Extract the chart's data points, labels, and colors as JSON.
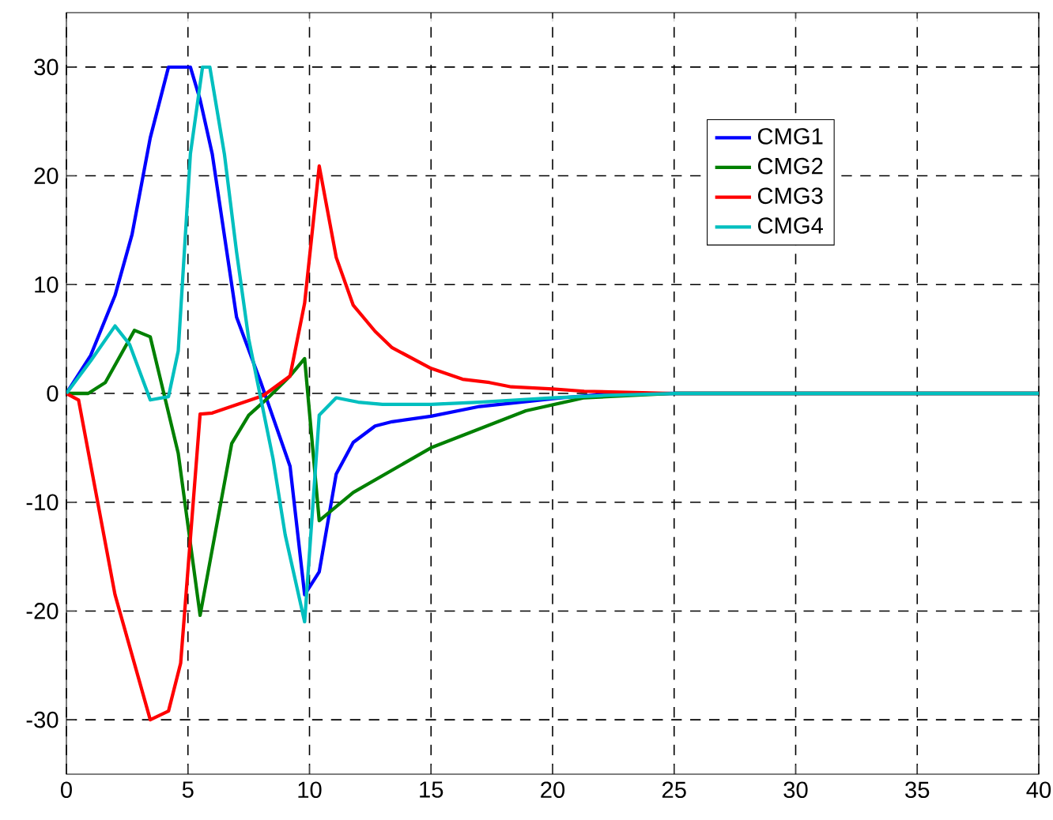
{
  "chart_data": {
    "type": "line",
    "xlim": [
      0,
      40
    ],
    "ylim": [
      -35,
      35
    ],
    "xticks": [
      0,
      5,
      10,
      15,
      20,
      25,
      30,
      35,
      40
    ],
    "yticks": [
      -30,
      -20,
      -10,
      0,
      10,
      20,
      30
    ],
    "grid": true,
    "legend": "top right",
    "line_style": "solid",
    "series": [
      {
        "name": "CMG1",
        "color": "#0000ff",
        "x": [
          0,
          1,
          2,
          2.7,
          3.45,
          4.2,
          5.1,
          5.5,
          6,
          7,
          8,
          9.2,
          9.8,
          10.4,
          11.1,
          11.8,
          12.7,
          13.4,
          15,
          17,
          20.4,
          22,
          25,
          40
        ],
        "values": [
          0,
          3.5,
          9,
          14.6,
          23.5,
          30,
          30,
          27,
          22,
          7,
          1,
          -6.7,
          -18.5,
          -16.4,
          -7.4,
          -4.5,
          -3,
          -2.6,
          -2.1,
          -1.2,
          -0.4,
          -0.1,
          0,
          0
        ]
      },
      {
        "name": "CMG2",
        "color": "#008000",
        "x": [
          0,
          0.9,
          1.6,
          2.8,
          3.45,
          4.6,
          5.5,
          6.8,
          7.5,
          8.3,
          9.2,
          9.8,
          10.4,
          11.8,
          15,
          18.9,
          21.3,
          25,
          40
        ],
        "values": [
          0,
          0,
          1,
          5.8,
          5.2,
          -5.5,
          -20.4,
          -4.6,
          -2,
          -0.4,
          1.6,
          3.2,
          -11.7,
          -9.1,
          -5,
          -1.6,
          -0.4,
          0,
          0
        ]
      },
      {
        "name": "CMG3",
        "color": "#ff0000",
        "x": [
          0,
          0.5,
          2,
          3.45,
          4.2,
          4.7,
          5.5,
          6,
          8.1,
          9.2,
          9.8,
          10.4,
          11.1,
          11.8,
          12.7,
          13.4,
          15,
          16.3,
          17.4,
          18.3,
          20,
          21.3,
          25,
          40
        ],
        "values": [
          0,
          -0.6,
          -18.5,
          -30,
          -29.2,
          -24.8,
          -1.9,
          -1.8,
          -0.2,
          1.6,
          8.3,
          20.9,
          12.5,
          8.1,
          5.7,
          4.2,
          2.3,
          1.3,
          1,
          0.6,
          0.4,
          0.2,
          0,
          0
        ]
      },
      {
        "name": "CMG4",
        "color": "#00bfbf",
        "x": [
          0,
          1,
          2,
          2.6,
          3.45,
          4.2,
          4.6,
          5.1,
          5.6,
          5.9,
          6.5,
          7,
          7.5,
          8.5,
          9,
          9.8,
          10.4,
          11.1,
          12,
          13,
          15,
          17,
          20,
          22,
          25,
          40
        ],
        "values": [
          0,
          3,
          6.2,
          4.5,
          -0.6,
          -0.3,
          3.9,
          22,
          30,
          30,
          22,
          13,
          5,
          -6,
          -13,
          -21,
          -2,
          -0.4,
          -0.8,
          -1,
          -1,
          -0.8,
          -0.4,
          -0.2,
          0,
          0
        ]
      }
    ]
  }
}
